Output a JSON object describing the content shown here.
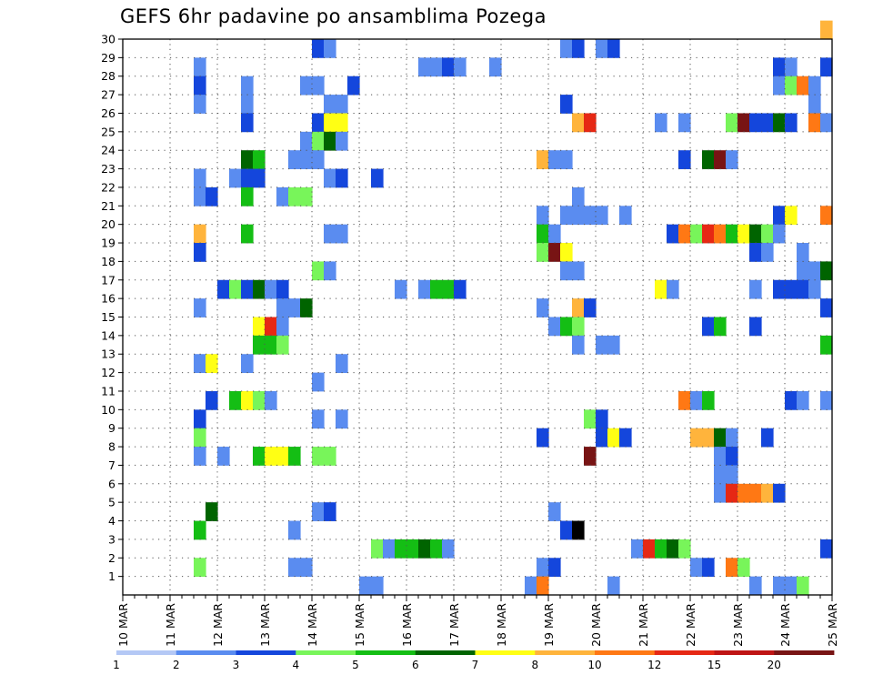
{
  "chart_data": {
    "type": "heatmap",
    "title": "GEFS 6hr padavine po ansamblima Pozega",
    "ylim": [
      0,
      30
    ],
    "yticks": [
      "1",
      "2",
      "3",
      "4",
      "5",
      "6",
      "7",
      "8",
      "9",
      "10",
      "11",
      "12",
      "13",
      "14",
      "15",
      "16",
      "17",
      "18",
      "19",
      "20",
      "21",
      "22",
      "23",
      "24",
      "25",
      "26",
      "27",
      "28",
      "29",
      "30"
    ],
    "x_step_hours": 6,
    "x_range_steps": [
      0,
      60
    ],
    "xticks": [
      {
        "step": 0,
        "label": "10 MAR"
      },
      {
        "step": 4,
        "label": "11 MAR"
      },
      {
        "step": 8,
        "label": "12 MAR"
      },
      {
        "step": 12,
        "label": "13 MAR"
      },
      {
        "step": 16,
        "label": "14 MAR"
      },
      {
        "step": 20,
        "label": "15 MAR"
      },
      {
        "step": 24,
        "label": "16 MAR"
      },
      {
        "step": 28,
        "label": "17 MAR"
      },
      {
        "step": 32,
        "label": "18 MAR"
      },
      {
        "step": 36,
        "label": "19 MAR"
      },
      {
        "step": 40,
        "label": "20 MAR"
      },
      {
        "step": 44,
        "label": "21 MAR"
      },
      {
        "step": 48,
        "label": "22 MAR"
      },
      {
        "step": 52,
        "label": "23 MAR"
      },
      {
        "step": 56,
        "label": "24 MAR"
      },
      {
        "step": 60,
        "label": "25 MAR"
      }
    ],
    "grid": true,
    "colorbar": {
      "boundaries": [
        1,
        2,
        3,
        4,
        5,
        6,
        7,
        8,
        10,
        12,
        15,
        20
      ],
      "labels": [
        "1",
        "2",
        "3",
        "4",
        "5",
        "6",
        "7",
        "8",
        "10",
        "12",
        "15",
        "20"
      ],
      "colors": [
        "#b4c8f5",
        "#5a8cf0",
        "#1446dc",
        "#78f55a",
        "#14be14",
        "#006400",
        "#ffff14",
        "#ffb43c",
        "#ff7814",
        "#e62814",
        "#be1414",
        "#781414"
      ]
    },
    "cells": [
      [
        30,
        59,
        7
      ],
      [
        29,
        16,
        2
      ],
      [
        29,
        17,
        1
      ],
      [
        29,
        37,
        1
      ],
      [
        29,
        38,
        2
      ],
      [
        29,
        40,
        1
      ],
      [
        29,
        41,
        2
      ],
      [
        28,
        6,
        1
      ],
      [
        28,
        25,
        1
      ],
      [
        28,
        26,
        1
      ],
      [
        28,
        27,
        2
      ],
      [
        28,
        28,
        1
      ],
      [
        28,
        31,
        1
      ],
      [
        28,
        55,
        2
      ],
      [
        28,
        56,
        1
      ],
      [
        28,
        59,
        2
      ],
      [
        27,
        6,
        2
      ],
      [
        27,
        10,
        1
      ],
      [
        27,
        15,
        1
      ],
      [
        27,
        16,
        1
      ],
      [
        27,
        19,
        2
      ],
      [
        27,
        55,
        1
      ],
      [
        27,
        56,
        3
      ],
      [
        27,
        57,
        8
      ],
      [
        27,
        58,
        1
      ],
      [
        26,
        6,
        1
      ],
      [
        26,
        10,
        1
      ],
      [
        26,
        17,
        1
      ],
      [
        26,
        18,
        1
      ],
      [
        26,
        37,
        2
      ],
      [
        26,
        58,
        1
      ],
      [
        25,
        10,
        2
      ],
      [
        25,
        16,
        2
      ],
      [
        25,
        17,
        6
      ],
      [
        25,
        18,
        6
      ],
      [
        25,
        38,
        7
      ],
      [
        25,
        39,
        9
      ],
      [
        25,
        45,
        1
      ],
      [
        25,
        47,
        1
      ],
      [
        25,
        51,
        3
      ],
      [
        25,
        52,
        11
      ],
      [
        25,
        53,
        2
      ],
      [
        25,
        54,
        2
      ],
      [
        25,
        55,
        5
      ],
      [
        25,
        56,
        2
      ],
      [
        25,
        58,
        8
      ],
      [
        25,
        59,
        1
      ],
      [
        24,
        15,
        1
      ],
      [
        24,
        16,
        3
      ],
      [
        24,
        17,
        5
      ],
      [
        24,
        18,
        1
      ],
      [
        23,
        10,
        5
      ],
      [
        23,
        11,
        4
      ],
      [
        23,
        14,
        1
      ],
      [
        23,
        15,
        1
      ],
      [
        23,
        16,
        1
      ],
      [
        23,
        35,
        7
      ],
      [
        23,
        36,
        1
      ],
      [
        23,
        37,
        1
      ],
      [
        23,
        47,
        2
      ],
      [
        23,
        49,
        5
      ],
      [
        23,
        50,
        11
      ],
      [
        23,
        51,
        1
      ],
      [
        22,
        6,
        1
      ],
      [
        22,
        9,
        1
      ],
      [
        22,
        10,
        2
      ],
      [
        22,
        11,
        2
      ],
      [
        22,
        17,
        1
      ],
      [
        22,
        18,
        2
      ],
      [
        22,
        21,
        2
      ],
      [
        21,
        6,
        1
      ],
      [
        21,
        7,
        2
      ],
      [
        21,
        10,
        4
      ],
      [
        21,
        13,
        1
      ],
      [
        21,
        14,
        3
      ],
      [
        21,
        15,
        3
      ],
      [
        21,
        38,
        1
      ],
      [
        20,
        35,
        1
      ],
      [
        20,
        37,
        1
      ],
      [
        20,
        38,
        1
      ],
      [
        20,
        39,
        1
      ],
      [
        20,
        40,
        1
      ],
      [
        20,
        42,
        1
      ],
      [
        20,
        55,
        2
      ],
      [
        20,
        56,
        6
      ],
      [
        20,
        59,
        8
      ],
      [
        19,
        6,
        7
      ],
      [
        19,
        10,
        4
      ],
      [
        19,
        17,
        1
      ],
      [
        19,
        18,
        1
      ],
      [
        19,
        35,
        4
      ],
      [
        19,
        36,
        1
      ],
      [
        19,
        46,
        2
      ],
      [
        19,
        47,
        8
      ],
      [
        19,
        48,
        3
      ],
      [
        19,
        49,
        9
      ],
      [
        19,
        50,
        8
      ],
      [
        19,
        51,
        4
      ],
      [
        19,
        52,
        6
      ],
      [
        19,
        53,
        5
      ],
      [
        19,
        54,
        3
      ],
      [
        19,
        55,
        1
      ],
      [
        18,
        6,
        2
      ],
      [
        18,
        35,
        3
      ],
      [
        18,
        36,
        11
      ],
      [
        18,
        37,
        6
      ],
      [
        18,
        53,
        2
      ],
      [
        18,
        54,
        1
      ],
      [
        18,
        57,
        1
      ],
      [
        17,
        16,
        3
      ],
      [
        17,
        17,
        1
      ],
      [
        17,
        37,
        1
      ],
      [
        17,
        38,
        1
      ],
      [
        17,
        57,
        1
      ],
      [
        17,
        58,
        1
      ],
      [
        17,
        59,
        5
      ],
      [
        16,
        8,
        2
      ],
      [
        16,
        9,
        3
      ],
      [
        16,
        10,
        2
      ],
      [
        16,
        11,
        5
      ],
      [
        16,
        12,
        1
      ],
      [
        16,
        13,
        2
      ],
      [
        16,
        23,
        1
      ],
      [
        16,
        25,
        1
      ],
      [
        16,
        26,
        4
      ],
      [
        16,
        27,
        4
      ],
      [
        16,
        28,
        2
      ],
      [
        16,
        45,
        6
      ],
      [
        16,
        46,
        1
      ],
      [
        16,
        53,
        1
      ],
      [
        16,
        55,
        2
      ],
      [
        16,
        56,
        2
      ],
      [
        16,
        57,
        2
      ],
      [
        16,
        58,
        1
      ],
      [
        15,
        6,
        1
      ],
      [
        15,
        13,
        1
      ],
      [
        15,
        14,
        1
      ],
      [
        15,
        15,
        5
      ],
      [
        15,
        35,
        1
      ],
      [
        15,
        38,
        7
      ],
      [
        15,
        39,
        2
      ],
      [
        15,
        59,
        2
      ],
      [
        14,
        11,
        6
      ],
      [
        14,
        12,
        9
      ],
      [
        14,
        13,
        1
      ],
      [
        14,
        36,
        1
      ],
      [
        14,
        37,
        4
      ],
      [
        14,
        38,
        3
      ],
      [
        14,
        49,
        2
      ],
      [
        14,
        50,
        4
      ],
      [
        14,
        53,
        2
      ],
      [
        13,
        11,
        4
      ],
      [
        13,
        12,
        4
      ],
      [
        13,
        13,
        3
      ],
      [
        13,
        38,
        1
      ],
      [
        13,
        40,
        1
      ],
      [
        13,
        41,
        1
      ],
      [
        13,
        59,
        4
      ],
      [
        12,
        6,
        1
      ],
      [
        12,
        7,
        6
      ],
      [
        12,
        10,
        1
      ],
      [
        12,
        18,
        1
      ],
      [
        11,
        16,
        1
      ],
      [
        10,
        7,
        2
      ],
      [
        10,
        9,
        4
      ],
      [
        10,
        10,
        6
      ],
      [
        10,
        11,
        3
      ],
      [
        10,
        12,
        1
      ],
      [
        10,
        47,
        8
      ],
      [
        10,
        48,
        1
      ],
      [
        10,
        49,
        4
      ],
      [
        10,
        56,
        2
      ],
      [
        10,
        57,
        1
      ],
      [
        10,
        59,
        1
      ],
      [
        9,
        6,
        2
      ],
      [
        9,
        16,
        1
      ],
      [
        9,
        18,
        1
      ],
      [
        9,
        39,
        3
      ],
      [
        9,
        40,
        2
      ],
      [
        8,
        6,
        3
      ],
      [
        8,
        35,
        2
      ],
      [
        8,
        40,
        2
      ],
      [
        8,
        41,
        6
      ],
      [
        8,
        42,
        2
      ],
      [
        8,
        48,
        7
      ],
      [
        8,
        49,
        7
      ],
      [
        8,
        50,
        5
      ],
      [
        8,
        51,
        1
      ],
      [
        8,
        54,
        2
      ],
      [
        7,
        6,
        1
      ],
      [
        7,
        8,
        1
      ],
      [
        7,
        11,
        4
      ],
      [
        7,
        12,
        6
      ],
      [
        7,
        13,
        6
      ],
      [
        7,
        14,
        4
      ],
      [
        7,
        16,
        3
      ],
      [
        7,
        17,
        3
      ],
      [
        7,
        39,
        11
      ],
      [
        7,
        50,
        1
      ],
      [
        7,
        51,
        2
      ],
      [
        6,
        50,
        1
      ],
      [
        6,
        51,
        1
      ],
      [
        5,
        50,
        1
      ],
      [
        5,
        51,
        9
      ],
      [
        5,
        52,
        8
      ],
      [
        5,
        53,
        8
      ],
      [
        5,
        54,
        7
      ],
      [
        5,
        55,
        2
      ],
      [
        4,
        7,
        5
      ],
      [
        4,
        16,
        1
      ],
      [
        4,
        17,
        2
      ],
      [
        4,
        36,
        1
      ],
      [
        3,
        6,
        4
      ],
      [
        3,
        14,
        1
      ],
      [
        3,
        37,
        2
      ],
      [
        3,
        38,
        12
      ],
      [
        2,
        21,
        3
      ],
      [
        2,
        22,
        1
      ],
      [
        2,
        23,
        4
      ],
      [
        2,
        24,
        4
      ],
      [
        2,
        25,
        5
      ],
      [
        2,
        26,
        4
      ],
      [
        2,
        27,
        1
      ],
      [
        2,
        43,
        1
      ],
      [
        2,
        44,
        9
      ],
      [
        2,
        45,
        4
      ],
      [
        2,
        46,
        5
      ],
      [
        2,
        47,
        3
      ],
      [
        2,
        59,
        2
      ],
      [
        1,
        6,
        3
      ],
      [
        1,
        14,
        1
      ],
      [
        1,
        15,
        1
      ],
      [
        1,
        35,
        1
      ],
      [
        1,
        36,
        2
      ],
      [
        1,
        48,
        1
      ],
      [
        1,
        49,
        2
      ],
      [
        1,
        51,
        8
      ],
      [
        1,
        52,
        3
      ],
      [
        0,
        20,
        1
      ],
      [
        0,
        21,
        1
      ],
      [
        0,
        34,
        1
      ],
      [
        0,
        35,
        8
      ],
      [
        0,
        41,
        1
      ],
      [
        0,
        53,
        1
      ],
      [
        0,
        55,
        1
      ],
      [
        0,
        56,
        1
      ],
      [
        0,
        57,
        3
      ]
    ]
  }
}
